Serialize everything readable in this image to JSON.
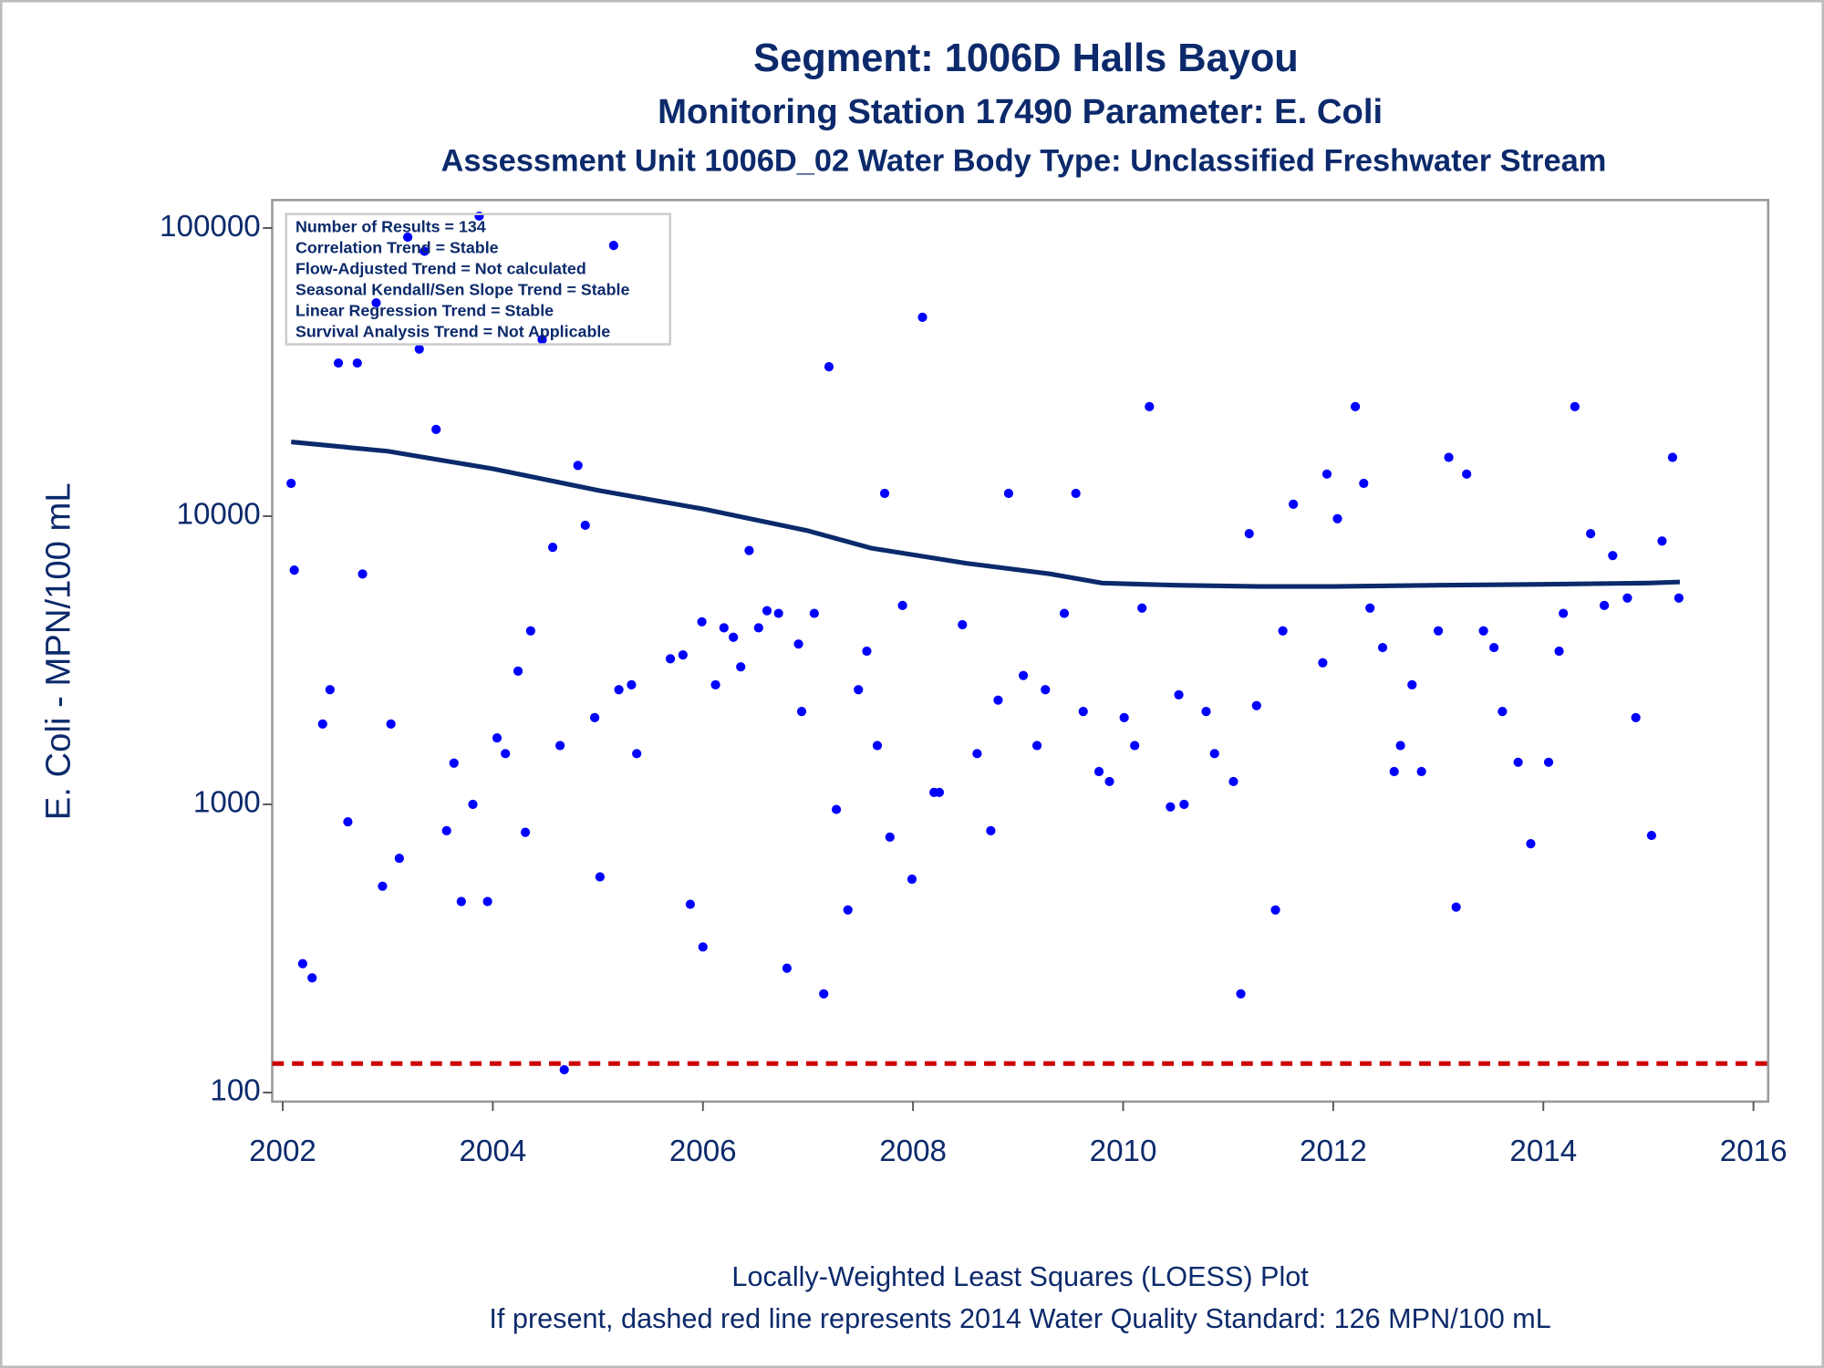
{
  "chart_data": {
    "type": "scatter",
    "title": "Segment: 1006D  Halls Bayou",
    "subtitles": [
      "Monitoring Station 17490 Parameter: E. Coli",
      "Assessment Unit 1006D_02   Water Body Type: Unclassified Freshwater Stream"
    ],
    "y_label": "E. Coli - MPN/100 mL",
    "annotations": [
      "Number of Results = 134",
      "Correlation Trend = Stable",
      "Flow-Adjusted Trend = Not calculated",
      "Seasonal Kendall/Sen Slope Trend = Stable",
      "Linear Regression Trend = Stable",
      "Survival Analysis Trend = Not Applicable"
    ],
    "footnotes": [
      "Locally-Weighted Least Squares (LOESS) Plot",
      "If present, dashed red line represents 2014 Water Quality Standard: 126 MPN/100 mL"
    ],
    "yscale": "log",
    "xlim": [
      2001.9,
      2016.14
    ],
    "ylim": [
      93,
      125000
    ],
    "xticks": [
      2002,
      2004,
      2006,
      2008,
      2010,
      2012,
      2014,
      2016
    ],
    "yticks": [
      100,
      1000,
      10000,
      100000
    ],
    "points": {
      "color": "#0000ff",
      "x": [
        2002.08,
        2002.11,
        2002.19,
        2002.28,
        2002.38,
        2002.45,
        2002.53,
        2002.62,
        2002.71,
        2002.76,
        2002.89,
        2002.95,
        2003.03,
        2003.11,
        2003.19,
        2003.3,
        2003.35,
        2003.46,
        2003.56,
        2003.63,
        2003.7,
        2003.81,
        2003.87,
        2003.95,
        2004.04,
        2004.12,
        2004.24,
        2004.31,
        2004.36,
        2004.47,
        2004.57,
        2004.64,
        2004.68,
        2004.81,
        2004.88,
        2004.97,
        2005.02,
        2005.15,
        2005.2,
        2005.32,
        2005.37,
        2005.69,
        2005.81,
        2005.88,
        2005.99,
        2006.0,
        2006.12,
        2006.2,
        2006.29,
        2006.36,
        2006.44,
        2006.53,
        2006.61,
        2006.72,
        2006.8,
        2006.91,
        2006.94,
        2007.06,
        2007.15,
        2007.2,
        2007.27,
        2007.38,
        2007.48,
        2007.56,
        2007.66,
        2007.73,
        2007.78,
        2007.9,
        2007.99,
        2008.09,
        2008.2,
        2008.25,
        2008.47,
        2008.61,
        2008.74,
        2008.81,
        2008.91,
        2009.05,
        2009.18,
        2009.26,
        2009.44,
        2009.55,
        2009.62,
        2009.77,
        2009.87,
        2010.01,
        2010.11,
        2010.18,
        2010.25,
        2010.45,
        2010.53,
        2010.58,
        2010.79,
        2010.87,
        2011.05,
        2011.12,
        2011.2,
        2011.27,
        2011.45,
        2011.52,
        2011.62,
        2011.9,
        2011.94,
        2012.04,
        2012.21,
        2012.29,
        2012.35,
        2012.47,
        2012.58,
        2012.64,
        2012.75,
        2012.84,
        2013.0,
        2013.1,
        2013.17,
        2013.27,
        2013.43,
        2013.53,
        2013.61,
        2013.76,
        2013.88,
        2014.05,
        2014.15,
        2014.19,
        2014.3,
        2014.45,
        2014.58,
        2014.66,
        2014.8,
        2014.88,
        2015.03,
        2015.13,
        2015.23,
        2015.29
      ],
      "values": [
        13000,
        6500,
        280,
        250,
        1900,
        2500,
        34000,
        870,
        34000,
        6300,
        55000,
        520,
        1900,
        650,
        93000,
        38000,
        83000,
        20000,
        810,
        1390,
        460,
        1000,
        110000,
        460,
        1700,
        1500,
        2900,
        800,
        4000,
        41000,
        7800,
        1600,
        120,
        15000,
        9300,
        2000,
        560,
        87000,
        2500,
        2600,
        1500,
        3200,
        3300,
        450,
        4300,
        320,
        2600,
        4100,
        3800,
        3000,
        7600,
        4100,
        4700,
        4600,
        270,
        3600,
        2100,
        4600,
        220,
        33000,
        960,
        430,
        2500,
        3400,
        1600,
        12000,
        770,
        4900,
        550,
        49000,
        1100,
        1100,
        4200,
        1500,
        810,
        2300,
        12000,
        2800,
        1600,
        2500,
        4600,
        12000,
        2100,
        1300,
        1200,
        2000,
        1600,
        4800,
        24000,
        980,
        2400,
        1000,
        2100,
        1500,
        1200,
        220,
        8700,
        2200,
        430,
        4000,
        11000,
        3100,
        14000,
        9800,
        24000,
        13000,
        4800,
        3500,
        1300,
        1600,
        2600,
        1300,
        4000,
        16000,
        440,
        14000,
        4000,
        3500,
        2100,
        1400,
        730,
        1400,
        3400,
        4600,
        24000,
        8700,
        4900,
        7300,
        5200,
        2000,
        780,
        8200,
        16000,
        5200
      ]
    },
    "loess": {
      "color": "#0b2a6b",
      "x": [
        2002.08,
        2003,
        2004,
        2005,
        2006,
        2007,
        2007.6,
        2008.5,
        2009.3,
        2009.8,
        2010.5,
        2011.3,
        2012,
        2013,
        2014,
        2015,
        2015.3
      ],
      "values": [
        18100,
        16800,
        14600,
        12300,
        10600,
        8900,
        7750,
        6870,
        6310,
        5860,
        5760,
        5700,
        5700,
        5760,
        5800,
        5860,
        5910
      ]
    },
    "reference_line": {
      "value": 126,
      "color": "#cc0000"
    }
  }
}
